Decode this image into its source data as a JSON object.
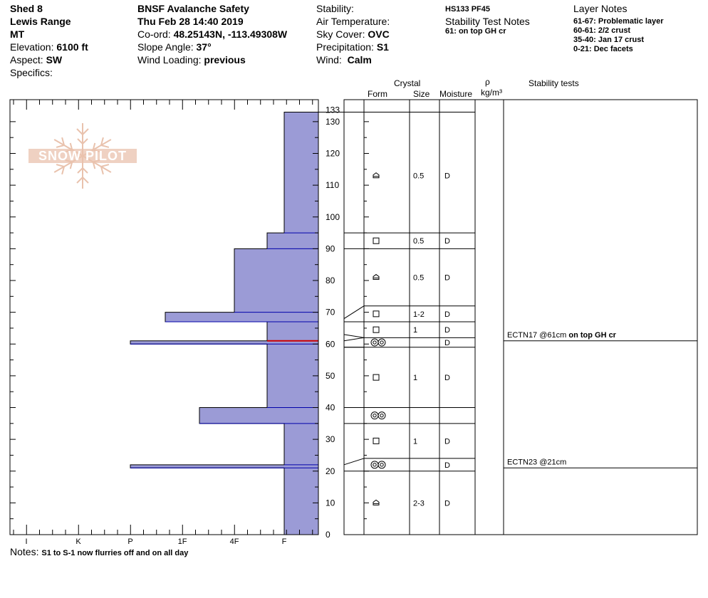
{
  "header": {
    "site": "Shed 8",
    "range": "Lewis Range",
    "state": "MT",
    "elevation_label": "Elevation:",
    "elevation": "6100 ft",
    "aspect_label": "Aspect:",
    "aspect": "SW",
    "specifics_label": "Specifics:",
    "org": "BNSF Avalanche Safety",
    "datetime": "Thu Feb 28 14:40 2019",
    "coord_label": "Co-ord:",
    "coord": "48.25143N, -113.49308W",
    "slope_label": "Slope Angle:",
    "slope": "37°",
    "wind_loading_label": "Wind Loading:",
    "wind_loading": "previous",
    "stability_label": "Stability:",
    "air_temp_label": "Air Temperature:",
    "sky_label": "Sky Cover:",
    "sky": "OVC",
    "precip_label": "Precipitation:",
    "precip": "S1",
    "wind_label": "Wind:",
    "wind": "Calm",
    "hs": "HS133 PF45",
    "stn_title": "Stability Test Notes",
    "stn_note": "61: on top GH cr",
    "layer_notes_title": "Layer Notes",
    "layer_notes": [
      "61-67: Problematic layer",
      "60-61: 2/2 crust",
      "35-40: Jan 17 crust",
      "0-21: Dec facets"
    ]
  },
  "logo_text": "SNOW PILOT",
  "columns": {
    "crystal": "Crystal",
    "form": "Form",
    "size": "Size",
    "moisture": "Moisture",
    "rho": "ρ",
    "density_unit": "kg/m³",
    "stability": "Stability tests"
  },
  "notes": {
    "label": "Notes:",
    "text": "S1 to S-1 now flurries off and on all day"
  },
  "colors": {
    "hardness_fill": "#9b9bd6",
    "hardness_edge": "#0000aa",
    "critical_line": "#cc0000",
    "logo": "#e9c2ad"
  },
  "chart_data": {
    "type": "bar",
    "orientation": "horizontal",
    "x_categories": [
      "I",
      "K",
      "P",
      "1F",
      "4F",
      "F"
    ],
    "ylim": [
      0,
      133
    ],
    "y_ticks": [
      0,
      10,
      20,
      30,
      40,
      50,
      60,
      70,
      80,
      90,
      100,
      110,
      120,
      130,
      133
    ],
    "hardness_profile": [
      {
        "bottom": 95,
        "top": 133,
        "hardness": "F"
      },
      {
        "bottom": 90,
        "top": 95,
        "hardness": "F+"
      },
      {
        "bottom": 70,
        "top": 90,
        "hardness": "4F"
      },
      {
        "bottom": 67,
        "top": 70,
        "hardness": "1F+"
      },
      {
        "bottom": 61,
        "top": 67,
        "hardness": "F+"
      },
      {
        "bottom": 60,
        "top": 61,
        "hardness": "P"
      },
      {
        "bottom": 40,
        "top": 60,
        "hardness": "F+"
      },
      {
        "bottom": 35,
        "top": 40,
        "hardness": "1F-"
      },
      {
        "bottom": 22,
        "top": 35,
        "hardness": "F"
      },
      {
        "bottom": 21,
        "top": 22,
        "hardness": "P"
      },
      {
        "bottom": 0,
        "top": 21,
        "hardness": "F"
      }
    ],
    "critical_layer": 61,
    "layer_boundaries": [
      133,
      95,
      90,
      72,
      67,
      62,
      59,
      40,
      35,
      24,
      20
    ],
    "layers": [
      {
        "y": 113,
        "form": "facet-rounding",
        "size": "0.5",
        "moisture": "D"
      },
      {
        "y": 92.5,
        "form": "facet",
        "size": "0.5",
        "moisture": "D"
      },
      {
        "y": 81,
        "form": "facet-rounding",
        "size": "0.5",
        "moisture": "D"
      },
      {
        "y": 69.5,
        "form": "facet",
        "size": "1-2",
        "moisture": "D"
      },
      {
        "y": 64.5,
        "form": "facet",
        "size": "1",
        "moisture": "D"
      },
      {
        "y": 60.5,
        "form": "melt-freeze crust",
        "size": "",
        "moisture": "D"
      },
      {
        "y": 49.5,
        "form": "facet",
        "size": "1",
        "moisture": "D"
      },
      {
        "y": 37.5,
        "form": "melt-freeze crust",
        "size": "",
        "moisture": ""
      },
      {
        "y": 29.5,
        "form": "facet",
        "size": "1",
        "moisture": "D"
      },
      {
        "y": 22,
        "form": "melt-freeze crust",
        "size": "",
        "moisture": "D"
      },
      {
        "y": 10,
        "form": "facet-rounding",
        "size": "2-3",
        "moisture": "D"
      }
    ],
    "stability_tests": [
      {
        "depth": 61,
        "result": "ECTN17 @61cm",
        "note": "on top GH cr"
      },
      {
        "depth": 21,
        "result": "ECTN23 @21cm",
        "note": ""
      }
    ]
  }
}
